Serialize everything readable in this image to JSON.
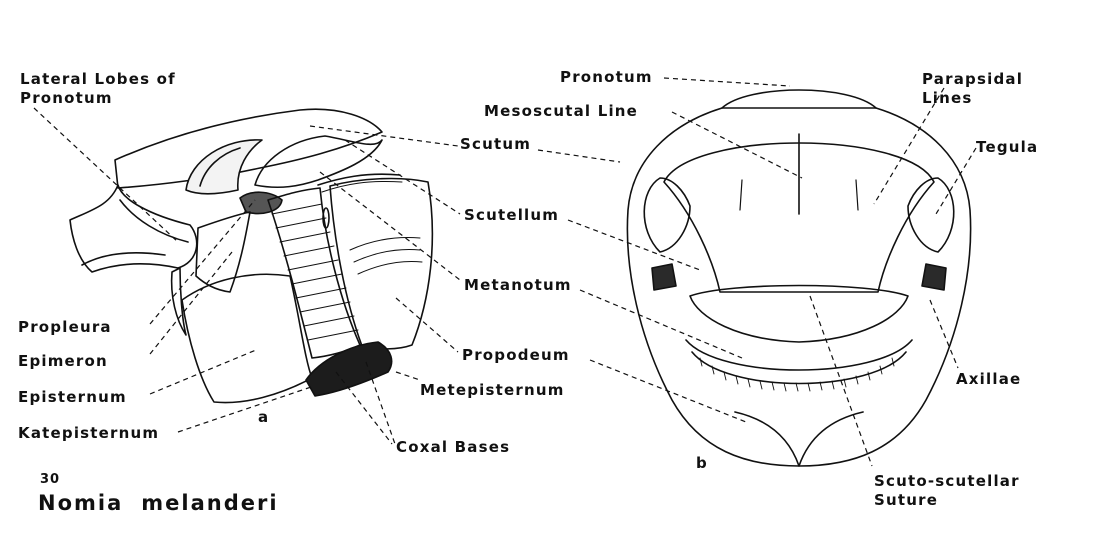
{
  "figure": {
    "number": "30",
    "species": [
      "Nomia",
      "melanderi"
    ],
    "panel_a": "a",
    "panel_b": "b"
  },
  "labels": {
    "lateral_lobes": "Lateral Lobes of\nPronotum",
    "scutum": "Scutum",
    "scutellum": "Scutellum",
    "metanotum": "Metanotum",
    "propodeum": "Propodeum",
    "metepisternum": "Metepisternum",
    "coxal_bases": "Coxal Bases",
    "propleura": "Propleura",
    "epimeron": "Epimeron",
    "episternum": "Episternum",
    "katepisternum": "Katepisternum",
    "pronotum": "Pronotum",
    "mesoscutal_line": "Mesoscutal Line",
    "parapsidal_lines": "Parapsidal\nLines",
    "tegula": "Tegula",
    "axillae": "Axillae",
    "scuto_scutellar": "Scuto-scutellar\nSuture"
  },
  "colors": {
    "ink": "#111111",
    "background": "#ffffff"
  }
}
